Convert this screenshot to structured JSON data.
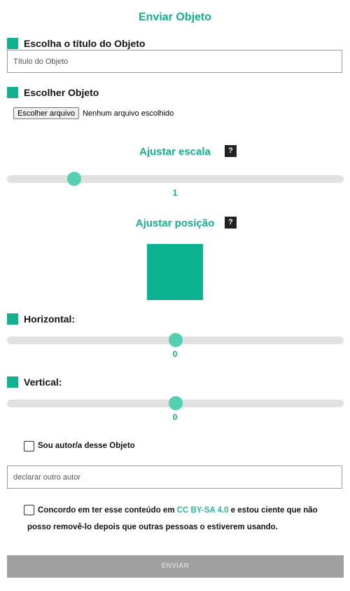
{
  "page": {
    "title": "Enviar Objeto"
  },
  "title_section": {
    "label": "Escolha o título do Objeto",
    "input_placeholder": "Título do Objeto",
    "input_value": ""
  },
  "object_section": {
    "label": "Escolher Objeto",
    "file_button_label": "Escolher arquivo",
    "file_status": "Nenhum arquivo escolhido"
  },
  "scale": {
    "heading": "Ajustar escala",
    "help_label": "?",
    "value": "1"
  },
  "position": {
    "heading": "Ajustar posição",
    "help_label": "?",
    "preview_color": "#0bb390",
    "horizontal": {
      "label": "Horizontal:",
      "value": "0"
    },
    "vertical": {
      "label": "Vertical:",
      "value": "0"
    }
  },
  "author": {
    "checkbox_label": "Sou autor/a desse Objeto",
    "checked": false,
    "other_author_placeholder": "declarar outro autor",
    "other_author_value": ""
  },
  "license": {
    "text_before": "Concordo em ter esse conteúdo em ",
    "license_name": "CC BY-SA 4.0",
    "text_after": " e estou ciente que não",
    "line2": "posso removê-lo depois que outras pessoas o estiverem usando.",
    "checked": false
  },
  "submit": {
    "label": "ENVIAR"
  },
  "colors": {
    "accent": "#13b08f",
    "slider_thumb": "#53cfb2",
    "slider_track": "#e1e1e1",
    "submit_disabled": "#a0a0a0"
  }
}
